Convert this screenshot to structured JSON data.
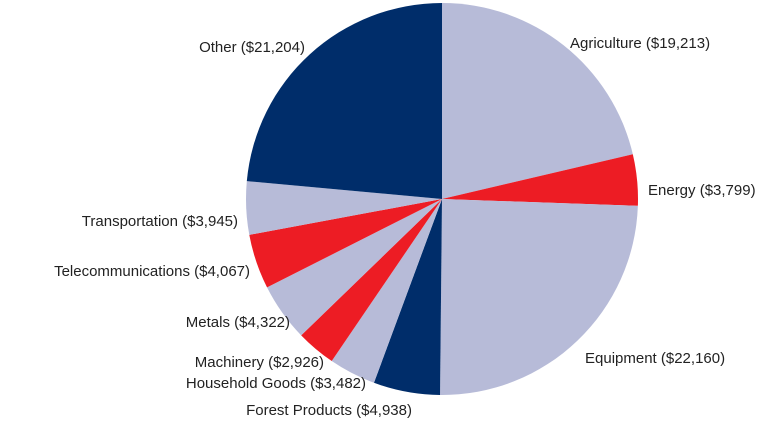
{
  "chart_data": {
    "type": "pie",
    "slices": [
      {
        "label": "Agriculture ($19,213)",
        "value": 19213,
        "color": "#b7bbd8"
      },
      {
        "label": "Energy ($3,799)",
        "value": 3799,
        "color": "#ed1c24"
      },
      {
        "label": "Equipment ($22,160)",
        "value": 22160,
        "color": "#b7bbd8"
      },
      {
        "label": "Forest Products ($4,938)",
        "value": 4938,
        "color": "#002d6a"
      },
      {
        "label": "Household Goods ($3,482)",
        "value": 3482,
        "color": "#b7bbd8"
      },
      {
        "label": "Machinery ($2,926)",
        "value": 2926,
        "color": "#ed1c24"
      },
      {
        "label": "Metals ($4,322)",
        "value": 4322,
        "color": "#b7bbd8"
      },
      {
        "label": "Telecommunications ($4,067)",
        "value": 4067,
        "color": "#ed1c24"
      },
      {
        "label": "Transportation ($3,945)",
        "value": 3945,
        "color": "#b7bbd8"
      },
      {
        "label": "Other ($21,204)",
        "value": 21204,
        "color": "#002d6a"
      }
    ],
    "start": "12 o'clock",
    "direction": "clockwise",
    "legend": "none"
  }
}
